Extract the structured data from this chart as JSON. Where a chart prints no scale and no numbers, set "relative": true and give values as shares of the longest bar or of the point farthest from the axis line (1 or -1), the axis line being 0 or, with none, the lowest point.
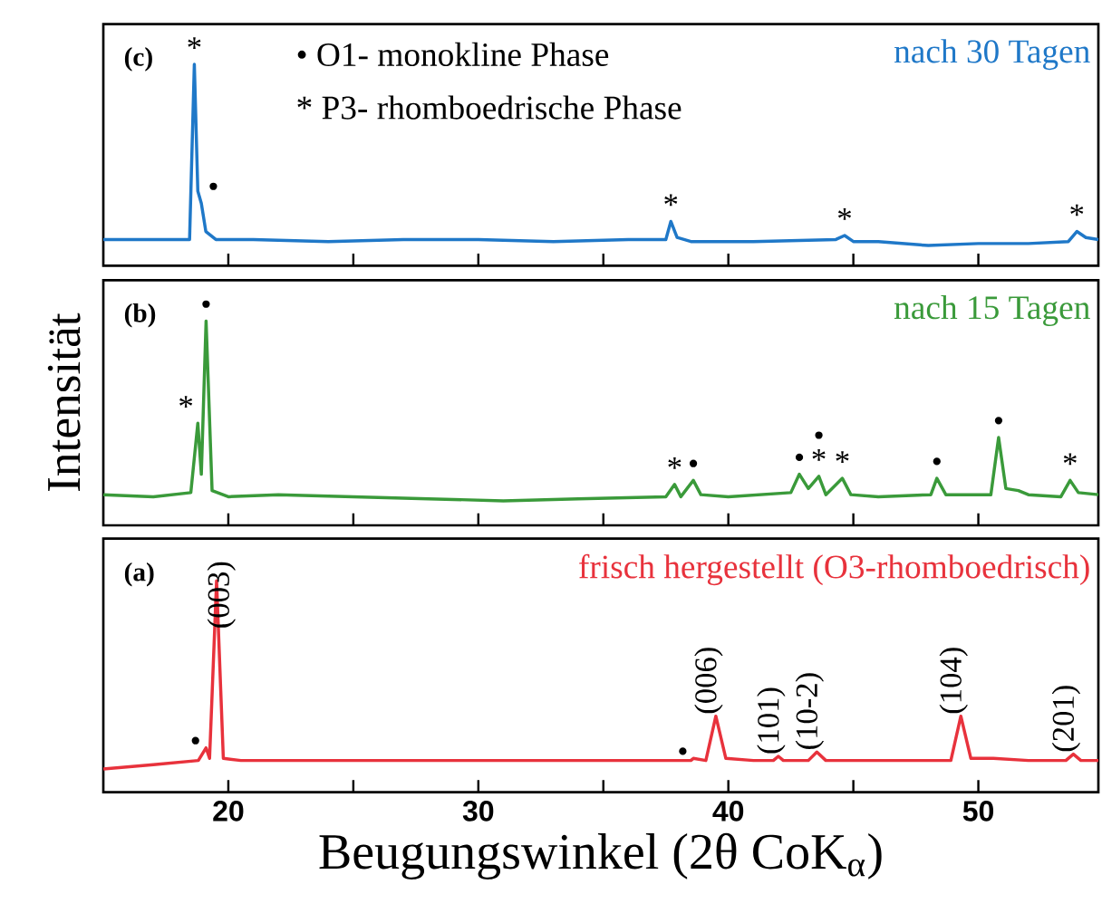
{
  "chart_data": [
    {
      "type": "line",
      "title": "nach 30 Tagen",
      "color": "#1f78c8",
      "relative": true,
      "tick_labels": false,
      "xlim": [
        15,
        54.8
      ],
      "xticks": [
        {
          "value": 20,
          "label": null
        },
        {
          "value": 25,
          "label": null
        },
        {
          "value": 30,
          "label": null
        },
        {
          "value": 35,
          "label": null
        },
        {
          "value": 40,
          "label": null
        },
        {
          "value": 45,
          "label": null
        },
        {
          "value": 50,
          "label": null
        }
      ],
      "x": [
        15,
        16.5,
        18,
        18.45,
        18.64,
        18.78,
        18.92,
        19.1,
        19.5,
        21,
        24,
        27,
        30,
        33,
        36,
        37.5,
        37.7,
        37.95,
        38.5,
        41,
        44.3,
        44.65,
        45.0,
        46,
        48,
        50,
        52,
        53.6,
        53.94,
        54.3,
        54.8
      ],
      "values": [
        0.13,
        0.13,
        0.13,
        0.13,
        1.0,
        0.37,
        0.31,
        0.17,
        0.13,
        0.13,
        0.12,
        0.13,
        0.13,
        0.12,
        0.13,
        0.13,
        0.22,
        0.14,
        0.12,
        0.12,
        0.13,
        0.15,
        0.12,
        0.12,
        0.1,
        0.11,
        0.11,
        0.12,
        0.17,
        0.14,
        0.13
      ],
      "annotations": [
        "(c)",
        "• O1- monokline Phase",
        "* P3- rhomboedrische Phase",
        {
          "text": "*",
          "x": 18.64,
          "y": 1.0
        },
        {
          "text": "•",
          "x": 18.92,
          "y": 0.31
        },
        {
          "text": "*",
          "x": 37.7,
          "y": 0.22
        },
        {
          "text": "*",
          "x": 44.65,
          "y": 0.15
        },
        {
          "text": "*",
          "x": 53.94,
          "y": 0.17
        }
      ]
    },
    {
      "type": "line",
      "title": "nach 15 Tagen",
      "color": "#3a9a3a",
      "relative": true,
      "tick_labels": false,
      "ylabel": "Intensität",
      "xlim": [
        15,
        54.8
      ],
      "xticks": [
        {
          "value": 20,
          "label": null
        },
        {
          "value": 25,
          "label": null
        },
        {
          "value": 30,
          "label": null
        },
        {
          "value": 35,
          "label": null
        },
        {
          "value": 40,
          "label": null
        },
        {
          "value": 45,
          "label": null
        },
        {
          "value": 50,
          "label": null
        }
      ],
      "x": [
        15,
        17,
        18.5,
        18.78,
        18.92,
        19.11,
        19.35,
        20,
        22,
        25,
        28,
        31,
        34,
        37.5,
        37.85,
        38.1,
        38.6,
        38.9,
        40,
        42.5,
        42.84,
        43.2,
        43.62,
        43.9,
        44.56,
        44.9,
        46,
        48.1,
        48.34,
        48.7,
        50.5,
        50.81,
        51.1,
        51.6,
        52,
        53.3,
        53.67,
        54,
        54.8
      ],
      "values": [
        0.15,
        0.14,
        0.16,
        0.5,
        0.25,
        1.0,
        0.17,
        0.14,
        0.15,
        0.14,
        0.13,
        0.12,
        0.13,
        0.14,
        0.2,
        0.14,
        0.22,
        0.15,
        0.14,
        0.16,
        0.25,
        0.18,
        0.24,
        0.15,
        0.23,
        0.15,
        0.14,
        0.15,
        0.23,
        0.15,
        0.15,
        0.43,
        0.18,
        0.17,
        0.15,
        0.14,
        0.22,
        0.16,
        0.15
      ],
      "annotations": [
        "(b)",
        {
          "text": "*",
          "x": 18.78,
          "y": 0.5
        },
        {
          "text": "•",
          "x": 19.11,
          "y": 1.0
        },
        {
          "text": "*",
          "x": 37.85,
          "y": 0.2
        },
        {
          "text": "•",
          "x": 38.6,
          "y": 0.22
        },
        {
          "text": "•",
          "x": 42.84,
          "y": 0.25
        },
        {
          "text": "*",
          "x": 43.62,
          "y": 0.24
        },
        {
          "text": "•",
          "x": 43.62,
          "y": 0.24
        },
        {
          "text": "*",
          "x": 44.56,
          "y": 0.23
        },
        {
          "text": "•",
          "x": 48.34,
          "y": 0.23
        },
        {
          "text": "•",
          "x": 50.81,
          "y": 0.43
        },
        {
          "text": "*",
          "x": 53.67,
          "y": 0.22
        }
      ]
    },
    {
      "type": "line",
      "title": "frisch hergestellt (O3-rhomboedrisch)",
      "color": "#e8323c",
      "relative": true,
      "tick_labels": "x",
      "xlabel": "Beugungswinkel (2θ CoK$_{α}$)",
      "xlim": [
        15,
        54.8
      ],
      "xticks": [
        20,
        {
          "value": 25,
          "label": null
        },
        30,
        {
          "value": 35,
          "label": null
        },
        40,
        {
          "value": 45,
          "label": null
        },
        50
      ],
      "x": [
        15,
        17,
        18.8,
        19.11,
        19.25,
        19.53,
        19.8,
        20.5,
        25,
        30,
        35,
        38.5,
        38.6,
        39.1,
        39.5,
        39.9,
        41,
        41.8,
        42.0,
        42.2,
        43.2,
        43.54,
        43.9,
        46,
        48.9,
        49.3,
        49.7,
        50.6,
        52,
        53.5,
        53.8,
        54.1,
        54.8
      ],
      "values": [
        0.11,
        0.13,
        0.15,
        0.21,
        0.16,
        1.0,
        0.16,
        0.15,
        0.15,
        0.15,
        0.15,
        0.15,
        0.16,
        0.15,
        0.36,
        0.16,
        0.15,
        0.15,
        0.17,
        0.15,
        0.15,
        0.19,
        0.15,
        0.15,
        0.15,
        0.36,
        0.16,
        0.16,
        0.15,
        0.15,
        0.18,
        0.15,
        0.15
      ],
      "annotations": [
        "(a)",
        {
          "text": "•",
          "x": 19.11,
          "y": 0.21
        },
        {
          "text": "(003)",
          "x": 19.53,
          "y": 1.0
        },
        {
          "text": "•",
          "x": 38.6,
          "y": 0.16
        },
        {
          "text": "(006)",
          "x": 39.5,
          "y": 0.36
        },
        {
          "text": "(101)",
          "x": 42.0,
          "y": 0.17
        },
        {
          "text": "(10-2)",
          "x": 43.54,
          "y": 0.19
        },
        {
          "text": "(104)",
          "x": 49.3,
          "y": 0.36
        },
        {
          "text": "(201)",
          "x": 53.8,
          "y": 0.18
        }
      ]
    }
  ]
}
